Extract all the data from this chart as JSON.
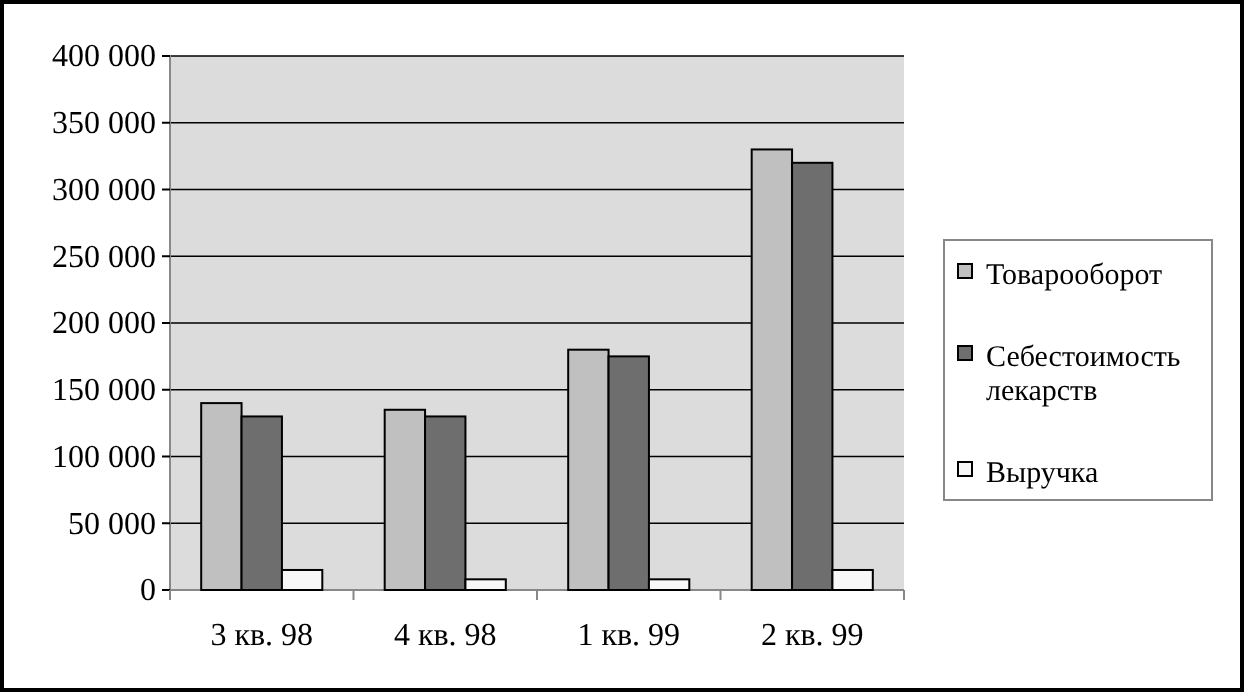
{
  "chart_data": {
    "type": "bar",
    "categories": [
      "3 кв. 98",
      "4 кв. 98",
      "1 кв. 99",
      "2 кв. 99"
    ],
    "series": [
      {
        "name": "Товарооборот",
        "color": "#c0c0c0",
        "values": [
          140000,
          135000,
          180000,
          330000
        ]
      },
      {
        "name": "Себестоимость лекарств",
        "color": "#6e6e6e",
        "values": [
          130000,
          130000,
          175000,
          320000
        ]
      },
      {
        "name": "Выручка",
        "color": "#f8f8f8",
        "values": [
          15000,
          8000,
          8000,
          15000
        ]
      }
    ],
    "ylim": [
      0,
      400000
    ],
    "yticks": [
      {
        "value": 0,
        "label": "0"
      },
      {
        "value": 50000,
        "label": "50 000"
      },
      {
        "value": 100000,
        "label": "100 000"
      },
      {
        "value": 150000,
        "label": "150 000"
      },
      {
        "value": 200000,
        "label": "200 000"
      },
      {
        "value": 250000,
        "label": "250 000"
      },
      {
        "value": 300000,
        "label": "300 000"
      },
      {
        "value": 350000,
        "label": "350 000"
      },
      {
        "value": 400000,
        "label": "400 000"
      }
    ],
    "grid": "y",
    "legend": "right"
  }
}
